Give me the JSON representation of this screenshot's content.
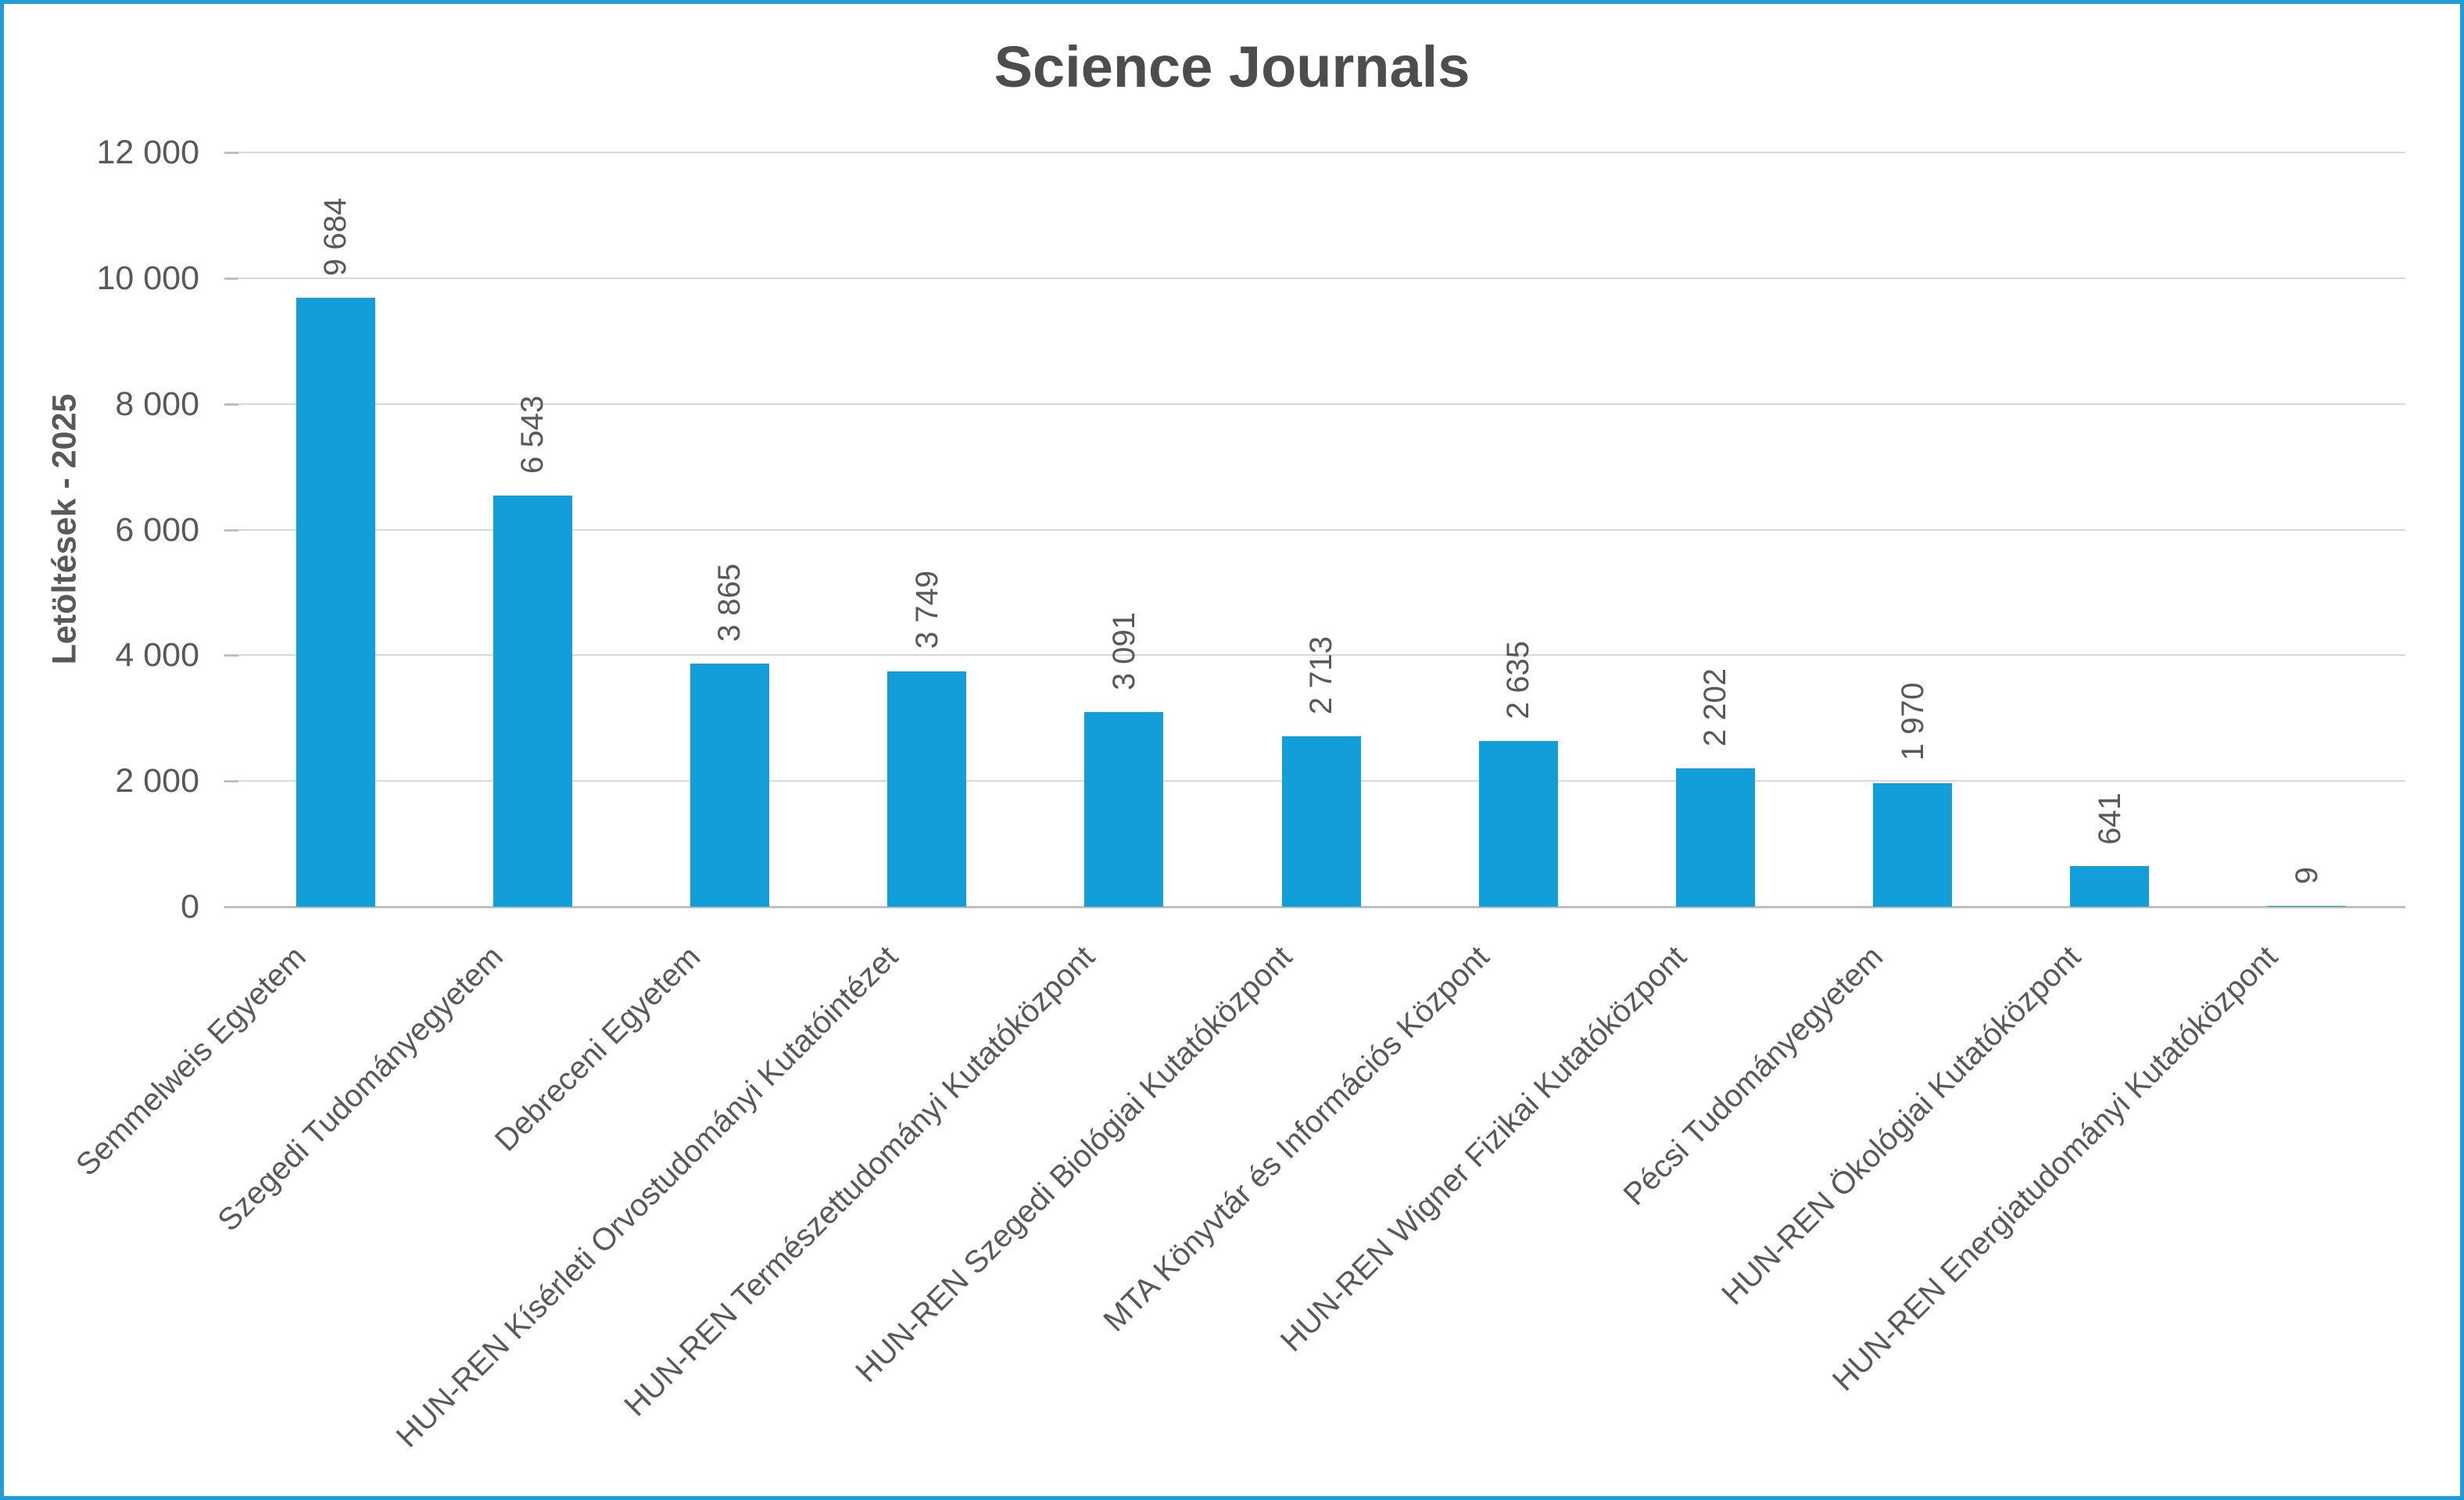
{
  "chart_data": {
    "type": "bar",
    "title": "Science Journals",
    "ylabel": "Letöltések - 2025",
    "xlabel": "",
    "categories": [
      "Semmelweis Egyetem",
      "Szegedi Tudományegyetem",
      "Debreceni Egyetem",
      "HUN-REN Kísérleti Orvostudományi Kutatóintézet",
      "HUN-REN Természettudományi Kutatóközpont",
      "HUN-REN Szegedi Biológiai Kutatóközpont",
      "MTA Könyvtár és Információs Központ",
      "HUN-REN Wigner Fizikai Kutatóközpont",
      "Pécsi Tudományegyetem",
      "HUN-REN Ökológiai Kutatóközpont",
      "HUN-REN Energiatudományi Kutatóközpont"
    ],
    "values": [
      9684,
      6543,
      3865,
      3749,
      3091,
      2713,
      2635,
      2202,
      1970,
      641,
      9
    ],
    "value_labels": [
      "9 684",
      "6 543",
      "3 865",
      "3 749",
      "3 091",
      "2 713",
      "2 635",
      "2 202",
      "1 970",
      "641",
      "9"
    ],
    "y_ticks": [
      "12 000",
      "10 000",
      "8 000",
      "6 000",
      "4 000",
      "2 000",
      "0"
    ],
    "ylim": [
      0,
      12000
    ],
    "grid": true,
    "legend_position": "none",
    "colors": {
      "bar": "#129ED8",
      "frame_border": "#1E9DD8",
      "text": "#595959",
      "gridline": "#D9D9D9",
      "axis_line": "#BFBFBF"
    }
  }
}
